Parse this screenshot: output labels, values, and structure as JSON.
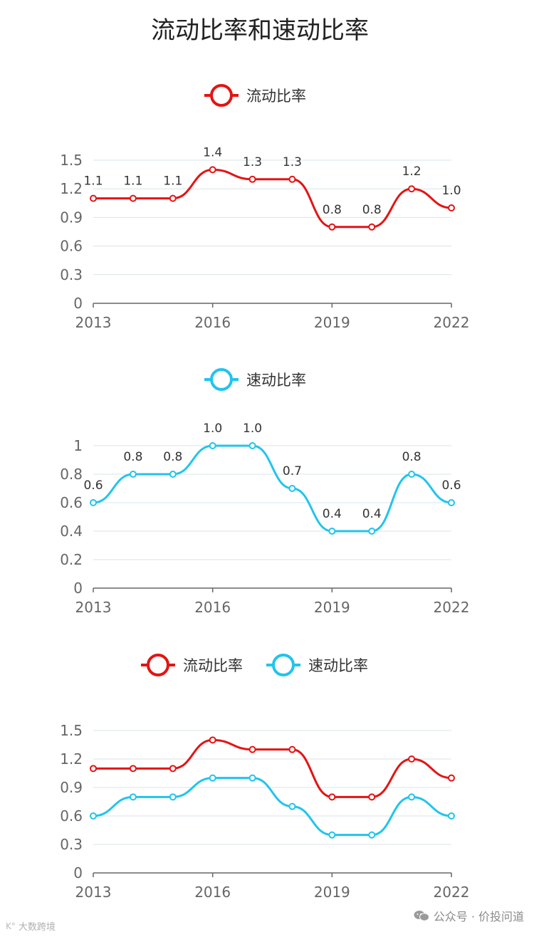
{
  "page": {
    "title": "流动比率和速动比率"
  },
  "colors": {
    "current": "#e31414",
    "quick": "#22c4ec",
    "grid": "#d9e3ea",
    "axis": "#666666",
    "label": "#333333"
  },
  "chart_data": [
    {
      "type": "line",
      "legend": [
        "流动比率"
      ],
      "categories": [
        "2013",
        "2014",
        "2015",
        "2016",
        "2017",
        "2018",
        "2019",
        "2020",
        "2021",
        "2022"
      ],
      "xtick_labels": [
        "2013",
        "2016",
        "2019",
        "2022"
      ],
      "ytick_labels": [
        "0",
        "0.3",
        "0.6",
        "0.9",
        "1.2",
        "1.5"
      ],
      "ylim": [
        0,
        1.5
      ],
      "series": [
        {
          "name": "流动比率",
          "color": "#e31414",
          "values": [
            1.1,
            1.1,
            1.1,
            1.4,
            1.3,
            1.3,
            0.8,
            0.8,
            1.2,
            1.0
          ],
          "labels": [
            "1.1",
            "1.1",
            "1.1",
            "1.4",
            "1.3",
            "1.3",
            "0.8",
            "0.8",
            "1.2",
            "1.0"
          ]
        }
      ]
    },
    {
      "type": "line",
      "legend": [
        "速动比率"
      ],
      "categories": [
        "2013",
        "2014",
        "2015",
        "2016",
        "2017",
        "2018",
        "2019",
        "2020",
        "2021",
        "2022"
      ],
      "xtick_labels": [
        "2013",
        "2016",
        "2019",
        "2022"
      ],
      "ytick_labels": [
        "0",
        "0.2",
        "0.4",
        "0.6",
        "0.8",
        "1"
      ],
      "ylim": [
        0,
        1.0
      ],
      "series": [
        {
          "name": "速动比率",
          "color": "#22c4ec",
          "values": [
            0.6,
            0.8,
            0.8,
            1.0,
            1.0,
            0.7,
            0.4,
            0.4,
            0.8,
            0.6
          ],
          "labels": [
            "0.6",
            "0.8",
            "0.8",
            "1.0",
            "1.0",
            "0.7",
            "0.4",
            "0.4",
            "0.8",
            "0.6"
          ]
        }
      ]
    },
    {
      "type": "line",
      "legend": [
        "流动比率",
        "速动比率"
      ],
      "categories": [
        "2013",
        "2014",
        "2015",
        "2016",
        "2017",
        "2018",
        "2019",
        "2020",
        "2021",
        "2022"
      ],
      "xtick_labels": [
        "2013",
        "2016",
        "2019",
        "2022"
      ],
      "ytick_labels": [
        "0",
        "0.3",
        "0.6",
        "0.9",
        "1.2",
        "1.5"
      ],
      "ylim": [
        0,
        1.5
      ],
      "series": [
        {
          "name": "流动比率",
          "color": "#e31414",
          "values": [
            1.1,
            1.1,
            1.1,
            1.4,
            1.3,
            1.3,
            0.8,
            0.8,
            1.2,
            1.0
          ]
        },
        {
          "name": "速动比率",
          "color": "#22c4ec",
          "values": [
            0.6,
            0.8,
            0.8,
            1.0,
            1.0,
            0.7,
            0.4,
            0.4,
            0.8,
            0.6
          ]
        }
      ]
    }
  ],
  "watermarks": {
    "left": "大数跨境",
    "right": "公众号 · 价投问道"
  }
}
